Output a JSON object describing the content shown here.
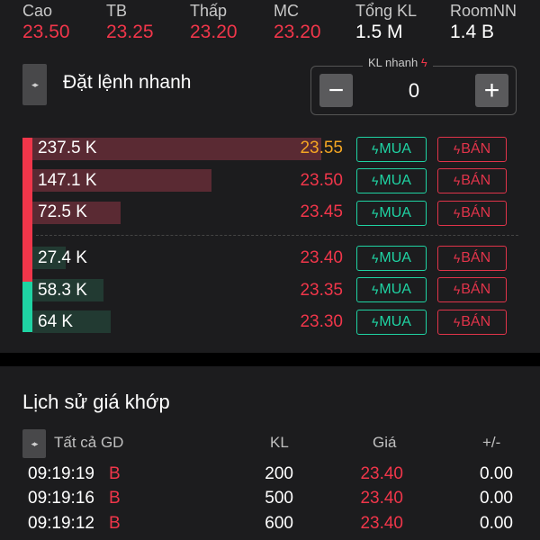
{
  "stats": [
    {
      "label": "Cao",
      "value": "23.50",
      "color": "red"
    },
    {
      "label": "TB",
      "value": "23.25",
      "color": "red"
    },
    {
      "label": "Thấp",
      "value": "23.20",
      "color": "red"
    },
    {
      "label": "MC",
      "value": "23.20",
      "color": "red"
    },
    {
      "label": "Tổng KL",
      "value": "1.5 M",
      "color": "white"
    },
    {
      "label": "RoomNN",
      "value": "1.4 B",
      "color": "white"
    }
  ],
  "quick_order": {
    "title": "Đặt lệnh nhanh",
    "qty_label": "KL nhanh",
    "qty_value": "0",
    "minus": "−",
    "plus": "+"
  },
  "order_book": {
    "buy_label": "MUA",
    "sell_label": "BÁN",
    "asks": [
      {
        "volume": "237.5 K",
        "price": "23.55",
        "price_color": "#f5a623",
        "depth": 1.0
      },
      {
        "volume": "147.1 K",
        "price": "23.50",
        "price_color": "#f0364a",
        "depth": 0.62
      },
      {
        "volume": "72.5 K",
        "price": "23.45",
        "price_color": "#f0364a",
        "depth": 0.305
      }
    ],
    "bids": [
      {
        "volume": "27.4 K",
        "price": "23.40",
        "price_color": "#f0364a",
        "depth": 0.115
      },
      {
        "volume": "58.3 K",
        "price": "23.35",
        "price_color": "#f0364a",
        "depth": 0.245
      },
      {
        "volume": "64 K",
        "price": "23.30",
        "price_color": "#f0364a",
        "depth": 0.27
      }
    ]
  },
  "history": {
    "title": "Lịch sử giá khớp",
    "filter": "Tất cả GD",
    "columns": {
      "volume": "KL",
      "price": "Giá",
      "change": "+/-"
    },
    "rows": [
      {
        "time": "09:19:19",
        "side": "B",
        "volume": "200",
        "price": "23.40",
        "change": "0.00"
      },
      {
        "time": "09:19:16",
        "side": "B",
        "volume": "500",
        "price": "23.40",
        "change": "0.00"
      },
      {
        "time": "09:19:12",
        "side": "B",
        "volume": "600",
        "price": "23.40",
        "change": "0.00"
      }
    ]
  },
  "colors": {
    "up": "#f0364a",
    "buy": "#1fd3a3",
    "sell": "#e0344a",
    "ceiling": "#f5a623"
  },
  "icons": [
    "expand-handle-icon",
    "minus-icon",
    "plus-icon",
    "bolt-icon"
  ]
}
